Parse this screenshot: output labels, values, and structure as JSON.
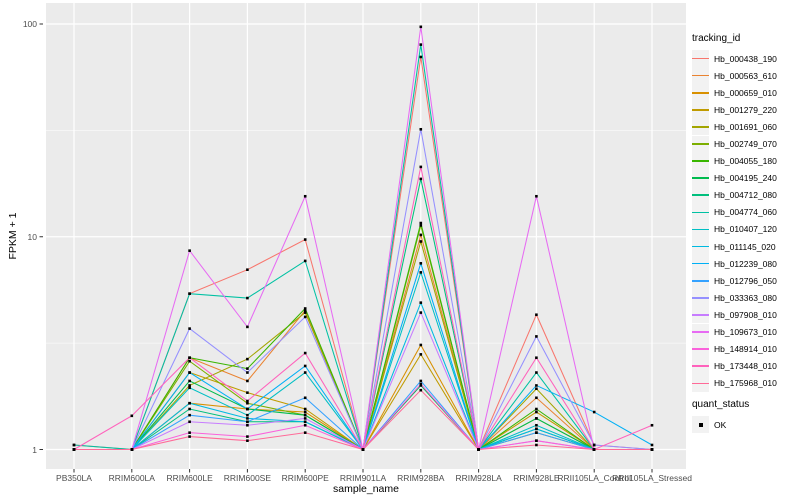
{
  "chart_data": {
    "type": "line",
    "title": "",
    "xlabel": "sample_name",
    "ylabel": "FPKM + 1",
    "y_scale": "log10",
    "y_ticks": [
      1,
      10,
      100
    ],
    "y_minor_log": [
      0.5,
      1.5
    ],
    "y_range_log": [
      -0.1,
      2.1
    ],
    "grid": "on",
    "legend_position": "right",
    "point_marker": "black-square",
    "categories": [
      "PB350LA",
      "RRIM600LA",
      "RRIM600LE",
      "RRIM600SE",
      "RRIM600PE",
      "RRIM901LA",
      "RRIM928BA",
      "RRIM928LA",
      "RRIM928LE",
      "RRII105LA_Control",
      "RRII105LA_Stressed"
    ],
    "series": [
      {
        "name": "Hb_000438_190",
        "color": "#F8766D",
        "values": [
          1.05,
          1.0,
          5.4,
          7.0,
          9.7,
          1.0,
          70,
          1.0,
          4.3,
          1.05,
          1.0
        ]
      },
      {
        "name": "Hb_000563_610",
        "color": "#EA8331",
        "values": [
          1.0,
          1.0,
          2.7,
          2.1,
          4.5,
          1.0,
          10.2,
          1.0,
          1.75,
          1.0,
          1.0
        ]
      },
      {
        "name": "Hb_000659_010",
        "color": "#D89000",
        "values": [
          1.0,
          1.0,
          1.65,
          1.55,
          1.5,
          1.0,
          3.1,
          1.0,
          1.2,
          1.0,
          1.0
        ]
      },
      {
        "name": "Hb_001279_220",
        "color": "#C09B00",
        "values": [
          1.0,
          1.0,
          2.3,
          1.85,
          1.55,
          1.0,
          2.8,
          1.0,
          1.5,
          1.0,
          1.0
        ]
      },
      {
        "name": "Hb_001691_060",
        "color": "#A3A500",
        "values": [
          1.0,
          1.0,
          2.0,
          2.66,
          4.4,
          1.0,
          9.5,
          1.0,
          1.93,
          1.0,
          1.0
        ]
      },
      {
        "name": "Hb_002749_070",
        "color": "#7CAE00",
        "values": [
          1.0,
          1.0,
          2.6,
          1.65,
          1.45,
          1.0,
          11.3,
          1.0,
          1.4,
          1.0,
          1.0
        ]
      },
      {
        "name": "Hb_004055_180",
        "color": "#39B600",
        "values": [
          1.0,
          1.0,
          2.7,
          2.4,
          4.6,
          1.0,
          11.6,
          1.0,
          1.55,
          1.0,
          1.0
        ]
      },
      {
        "name": "Hb_004195_240",
        "color": "#00BB4E",
        "values": [
          1.0,
          1.0,
          2.1,
          1.55,
          1.45,
          1.0,
          2.0,
          1.0,
          1.4,
          1.0,
          1.0
        ]
      },
      {
        "name": "Hb_004712_080",
        "color": "#00BF7D",
        "values": [
          1.0,
          1.0,
          1.55,
          1.35,
          1.35,
          1.0,
          18.7,
          1.0,
          1.25,
          1.0,
          1.0
        ]
      },
      {
        "name": "Hb_004774_060",
        "color": "#00C1A3",
        "values": [
          1.05,
          1.0,
          5.4,
          5.15,
          7.7,
          1.0,
          80,
          1.0,
          2.3,
          1.0,
          1.0
        ]
      },
      {
        "name": "Hb_010407_120",
        "color": "#00BFC4",
        "values": [
          1.0,
          1.0,
          1.95,
          1.45,
          2.3,
          1.0,
          6.8,
          1.0,
          1.3,
          1.0,
          1.0
        ]
      },
      {
        "name": "Hb_011145_020",
        "color": "#00BAE0",
        "values": [
          1.0,
          1.0,
          1.65,
          1.4,
          1.35,
          1.0,
          4.9,
          1.0,
          1.25,
          1.0,
          1.0
        ]
      },
      {
        "name": "Hb_012239_080",
        "color": "#00B0F6",
        "values": [
          1.0,
          1.0,
          2.3,
          1.55,
          2.47,
          1.0,
          7.5,
          1.0,
          2.0,
          1.5,
          1.05
        ]
      },
      {
        "name": "Hb_012796_050",
        "color": "#35A2FF",
        "values": [
          1.0,
          1.0,
          1.45,
          1.35,
          1.75,
          1.0,
          2.1,
          1.0,
          1.2,
          1.0,
          1.0
        ]
      },
      {
        "name": "Hb_033363_080",
        "color": "#9590FF",
        "values": [
          1.0,
          1.0,
          3.7,
          2.3,
          4.2,
          1.0,
          32,
          1.0,
          3.4,
          1.05,
          1.0
        ]
      },
      {
        "name": "Hb_097908_010",
        "color": "#C77CFF",
        "values": [
          1.0,
          1.0,
          1.35,
          1.3,
          1.4,
          1.0,
          4.4,
          1.0,
          1.1,
          1.0,
          1.0
        ]
      },
      {
        "name": "Hb_109673_010",
        "color": "#E76BF3",
        "values": [
          1.0,
          1.0,
          8.6,
          3.77,
          15.5,
          1.0,
          97,
          1.0,
          15.5,
          1.0,
          1.0
        ]
      },
      {
        "name": "Hb_148914_010",
        "color": "#FA62DB",
        "values": [
          1.0,
          1.0,
          1.2,
          1.15,
          1.3,
          1.0,
          2.03,
          1.0,
          1.1,
          1.0,
          1.0
        ]
      },
      {
        "name": "Hb_173448_010",
        "color": "#FF62BC",
        "values": [
          1.0,
          1.44,
          2.7,
          1.69,
          2.84,
          1.0,
          21.3,
          1.0,
          2.7,
          1.0,
          1.3
        ]
      },
      {
        "name": "Hb_175968_010",
        "color": "#FF6A98",
        "values": [
          1.0,
          1.0,
          1.15,
          1.1,
          1.2,
          1.0,
          1.9,
          1.0,
          1.05,
          1.0,
          1.0
        ]
      }
    ],
    "legend": {
      "title": "tracking_id"
    },
    "legend2": {
      "title": "quant_status",
      "items": [
        {
          "label": "OK"
        }
      ]
    }
  },
  "style_colors": {
    "panel_bg": "#EBEBEB",
    "grid": "#FFFFFF",
    "legend_key_bg": "#F2F2F2",
    "tick_mark": "#333333",
    "tick_label": "#4D4D4D",
    "point": "#000000"
  }
}
